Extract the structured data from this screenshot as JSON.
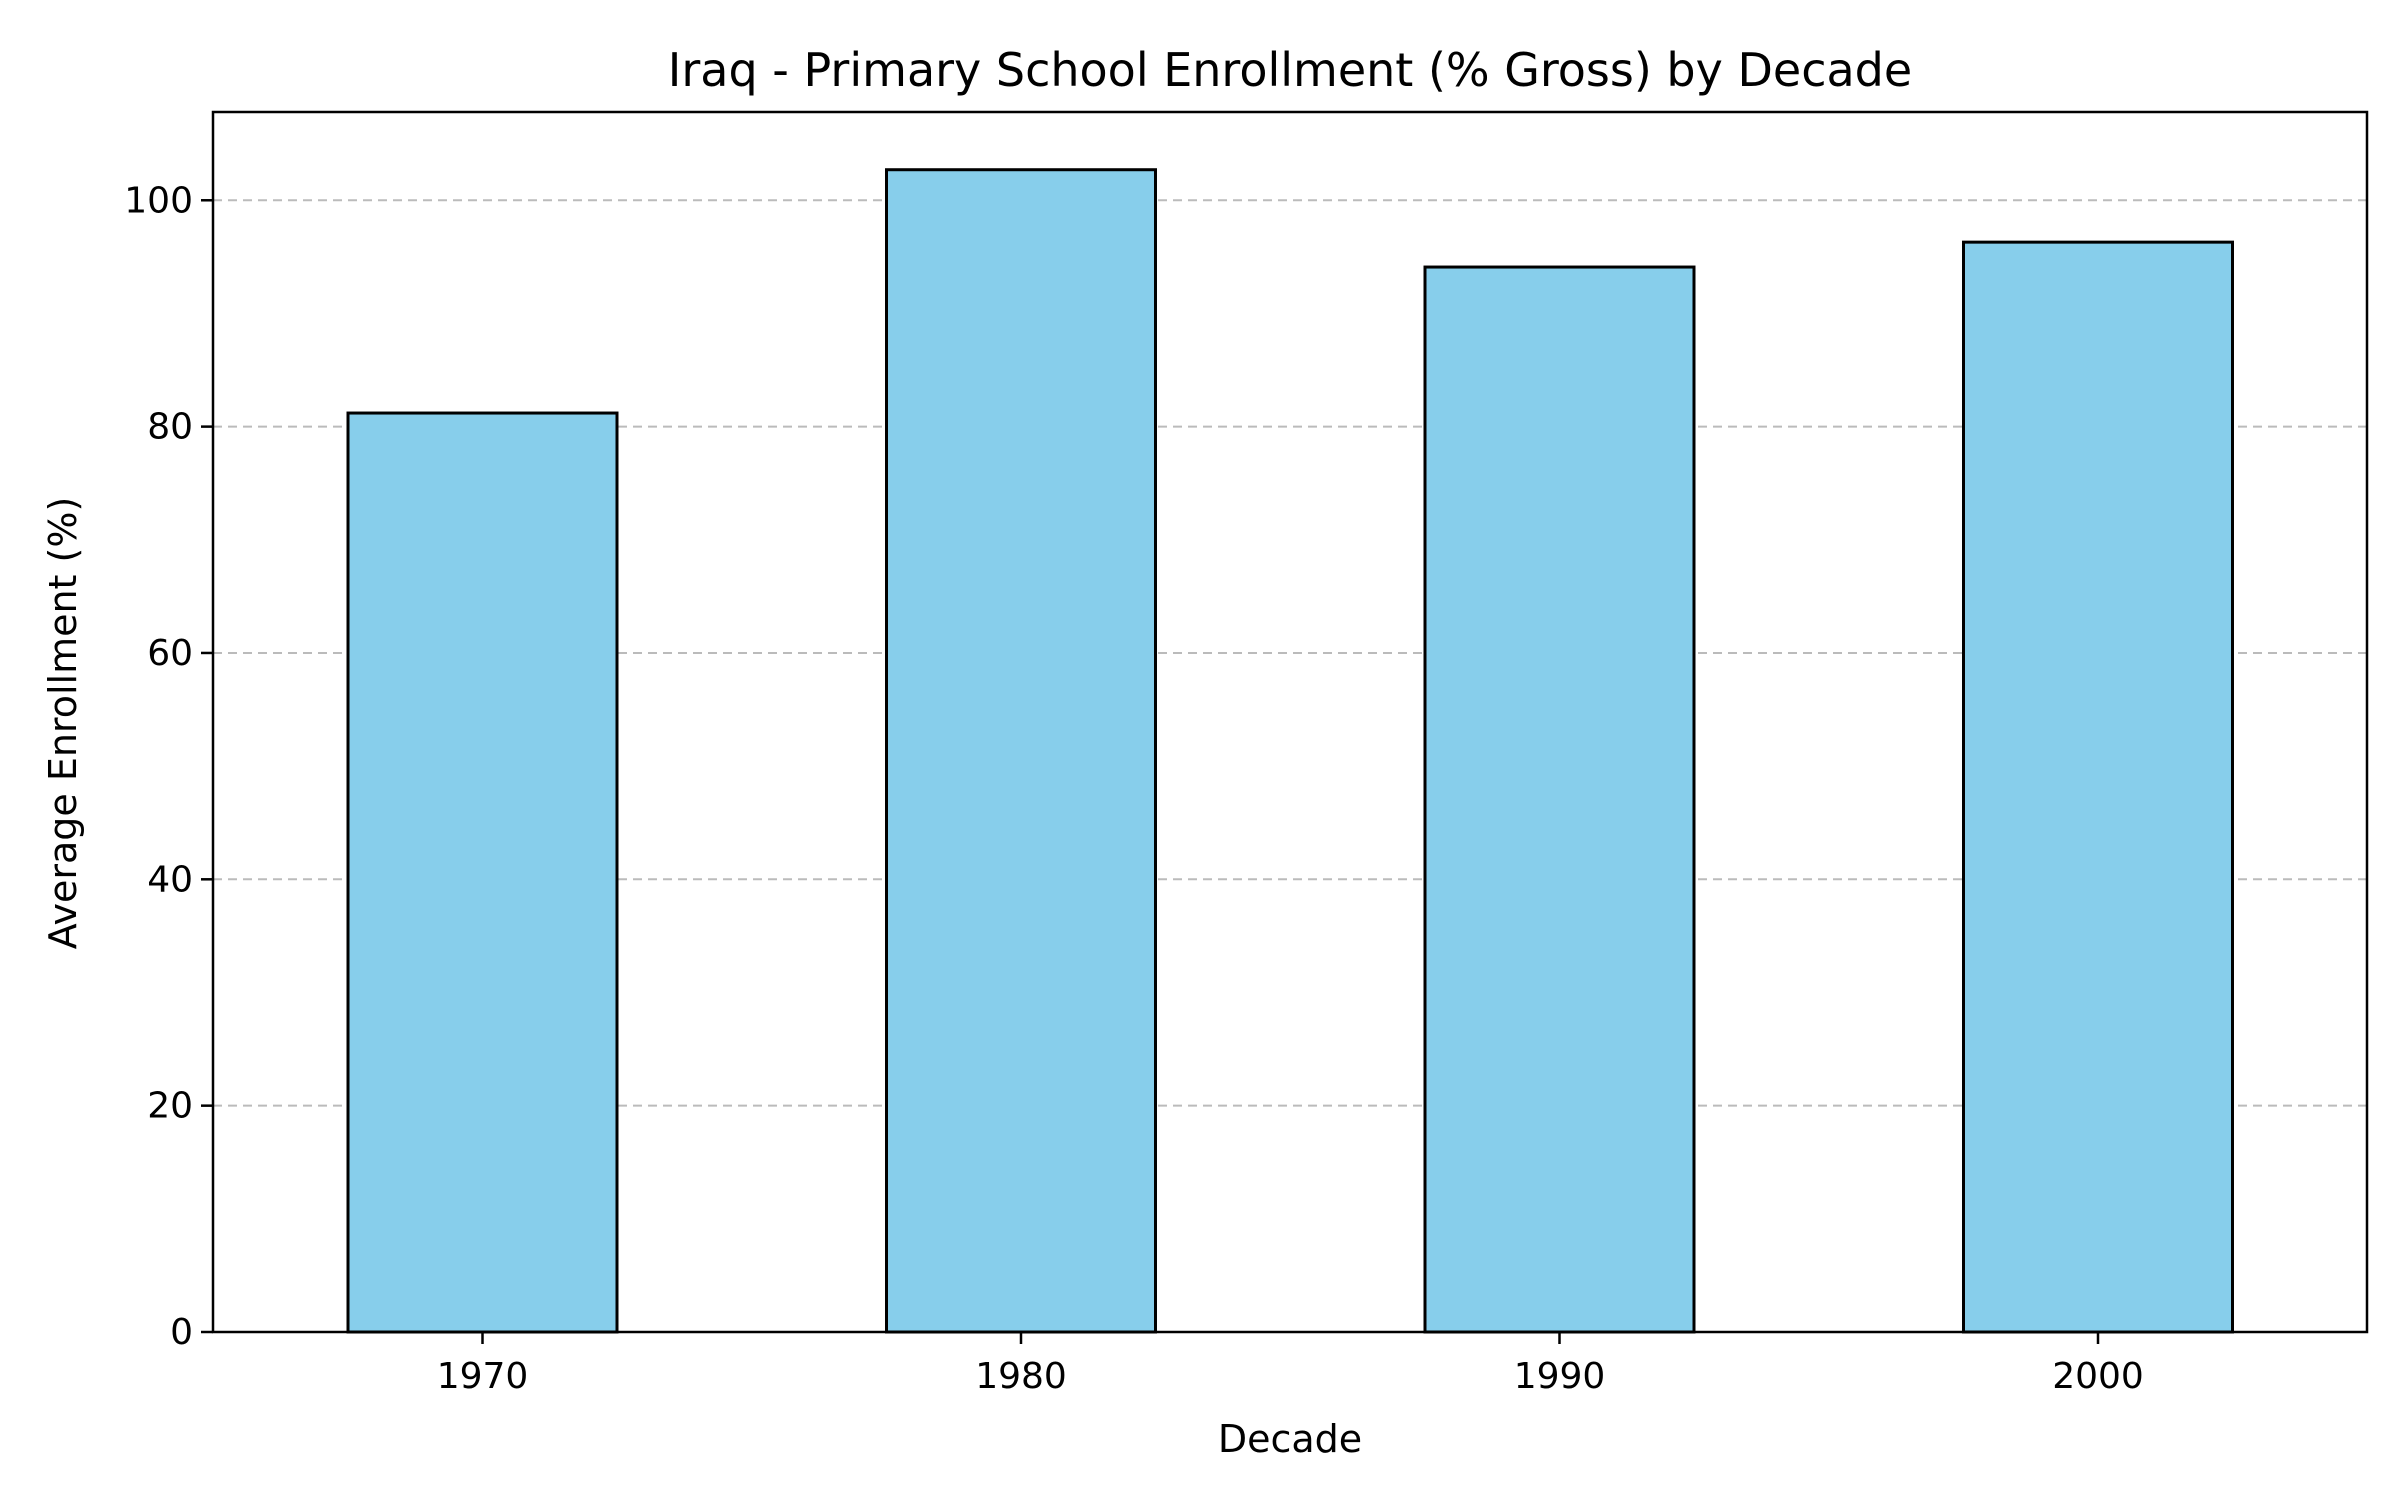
{
  "chart_data": {
    "type": "bar",
    "title": "Iraq - Primary School Enrollment (% Gross) by Decade",
    "xlabel": "Decade",
    "ylabel": "Average Enrollment (%)",
    "categories": [
      "1970",
      "1980",
      "1990",
      "2000"
    ],
    "values": [
      81.2,
      102.7,
      94.1,
      96.3
    ],
    "ylim": [
      0,
      107.8
    ],
    "yticks": [
      0,
      20,
      40,
      60,
      80,
      100
    ],
    "grid": "y-dashed",
    "legend": "none",
    "bar_color": "#87CEEB",
    "edge_color": "#000000"
  }
}
